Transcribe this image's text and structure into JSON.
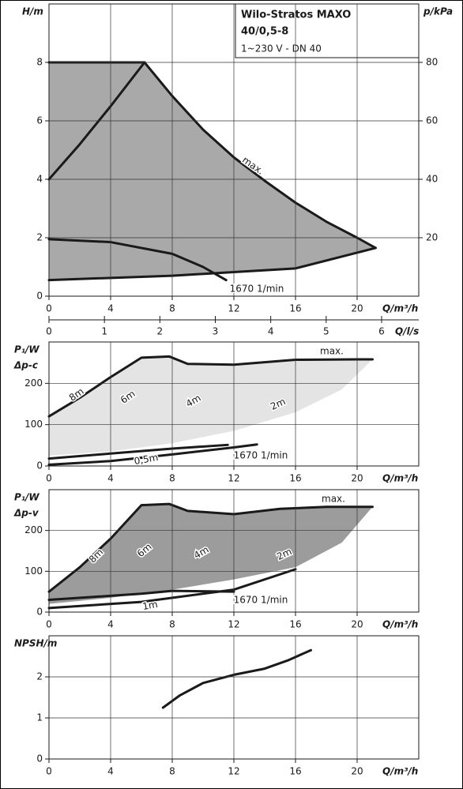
{
  "chart_data": [
    {
      "type": "line",
      "title": "Wilo-Stratos MAXO",
      "model": "40/0,5-8",
      "subtitle": "1~230 V - DN 40",
      "y_label": "H/m",
      "y2_label": "p/kPa",
      "x_label": "Q/m³/h",
      "x2_label": "Q/l/s",
      "xlim": [
        0,
        24
      ],
      "xticks": [
        0,
        4,
        8,
        12,
        16,
        20
      ],
      "ylim": [
        0,
        10
      ],
      "yticks": [
        0,
        2,
        4,
        6,
        8
      ],
      "y2lim": [
        0,
        100
      ],
      "y2ticks": [
        20,
        40,
        60,
        80
      ],
      "x2lim": [
        0,
        6.67
      ],
      "x2ticks": [
        0,
        1,
        2,
        3,
        4,
        5,
        6
      ],
      "grid": true,
      "series": [
        {
          "x": [
            0,
            6.2,
            8,
            10,
            12,
            14,
            16,
            18,
            20,
            21.2
          ],
          "values": [
            8,
            8,
            6.85,
            5.7,
            4.75,
            3.95,
            3.2,
            2.55,
            2.0,
            1.65
          ],
          "color": "#1a1a1a",
          "fill": "#a9a9a9",
          "fill_between": 1
        },
        {
          "x": [
            0,
            8,
            16,
            21.2
          ],
          "values": [
            0.55,
            0.7,
            0.95,
            1.65
          ],
          "color": "#1a1a1a"
        },
        {
          "x": [
            0,
            2,
            4,
            6.2
          ],
          "values": [
            4,
            5.2,
            6.5,
            8
          ],
          "color": "#1a1a1a"
        },
        {
          "x": [
            0,
            4,
            8,
            10,
            11.5
          ],
          "values": [
            1.95,
            1.85,
            1.45,
            1.0,
            0.55
          ],
          "color": "#1a1a1a"
        }
      ],
      "annotations": [
        "max.",
        "1670 1/min"
      ]
    },
    {
      "type": "line",
      "y_label": "P₁/W",
      "mode": "Δp-c",
      "x_label": "Q/m³/h",
      "xlim": [
        0,
        24
      ],
      "xticks": [
        0,
        4,
        8,
        12,
        16,
        20
      ],
      "ylim": [
        0,
        300
      ],
      "yticks": [
        0,
        100,
        200
      ],
      "grid": true,
      "series": [
        {
          "x": [
            0,
            2,
            4,
            6,
            7.8,
            9,
            12,
            16,
            20,
            21
          ],
          "values": [
            120,
            165,
            215,
            262,
            265,
            247,
            245,
            257,
            258,
            258
          ],
          "color": "#1a1a1a",
          "fill": "#e4e4e4",
          "fill_between": 1
        },
        {
          "x": [
            0,
            4,
            8,
            12,
            16,
            19,
            21
          ],
          "values": [
            25,
            35,
            55,
            85,
            130,
            185,
            258
          ],
          "color": "none"
        },
        {
          "x": [
            0,
            4,
            8,
            12,
            13.5
          ],
          "values": [
            3,
            12,
            28,
            45,
            52
          ],
          "color": "#1a1a1a"
        },
        {
          "x": [
            0,
            4,
            8,
            11.6
          ],
          "values": [
            18,
            30,
            42,
            51
          ],
          "color": "#1a1a1a"
        }
      ],
      "annotations": [
        "max.",
        "8m",
        "6m",
        "4m",
        "2m",
        "0,5m",
        "1670 1/min"
      ]
    },
    {
      "type": "line",
      "y_label": "P₁/W",
      "mode": "Δp-v",
      "x_label": "Q/m³/h",
      "xlim": [
        0,
        24
      ],
      "xticks": [
        0,
        4,
        8,
        12,
        16,
        20
      ],
      "ylim": [
        0,
        300
      ],
      "yticks": [
        0,
        100,
        200
      ],
      "grid": true,
      "series": [
        {
          "x": [
            0,
            2,
            4,
            6,
            7.8,
            9,
            12,
            15,
            18,
            21
          ],
          "values": [
            50,
            110,
            180,
            262,
            265,
            248,
            240,
            253,
            258,
            258
          ],
          "color": "#1a1a1a",
          "fill": "#9c9c9c",
          "fill_between": 1
        },
        {
          "x": [
            0,
            4,
            8,
            12,
            16,
            19,
            21
          ],
          "values": [
            20,
            35,
            55,
            80,
            110,
            170,
            258
          ],
          "color": "none"
        },
        {
          "x": [
            0,
            6,
            12,
            16
          ],
          "values": [
            10,
            25,
            55,
            105
          ],
          "color": "#1a1a1a"
        },
        {
          "x": [
            0,
            6,
            8,
            12
          ],
          "values": [
            30,
            45,
            52,
            50
          ],
          "color": "#1a1a1a"
        }
      ],
      "annotations": [
        "max.",
        "8m",
        "6m",
        "4m",
        "2m",
        "1m",
        "1670 1/min"
      ]
    },
    {
      "type": "line",
      "y_label": "NPSH/m",
      "x_label": "Q/m³/h",
      "xlim": [
        0,
        24
      ],
      "xticks": [
        0,
        4,
        8,
        12,
        16,
        20
      ],
      "ylim": [
        0,
        3
      ],
      "yticks": [
        0,
        1,
        2
      ],
      "grid": true,
      "series": [
        {
          "x": [
            7.4,
            8.5,
            10,
            12,
            14,
            15.5,
            17
          ],
          "values": [
            1.25,
            1.55,
            1.85,
            2.05,
            2.2,
            2.4,
            2.65
          ],
          "color": "#1a1a1a"
        }
      ],
      "annotations": []
    }
  ]
}
